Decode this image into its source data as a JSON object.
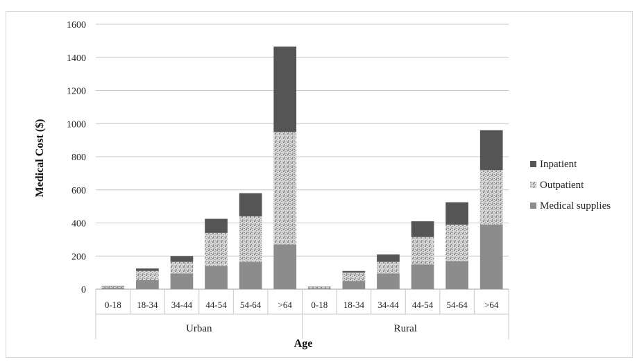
{
  "chart_data": {
    "type": "bar",
    "stacked": true,
    "xlabel": "Age",
    "ylabel": "Medical Cost ($)",
    "ylim": [
      0,
      1600
    ],
    "yticks": [
      0,
      200,
      400,
      600,
      800,
      1000,
      1200,
      1400,
      1600
    ],
    "grid": true,
    "legend_position": "right",
    "groups": [
      {
        "name": "Urban",
        "categories": [
          "0-18",
          "18-34",
          "34-44",
          "44-54",
          "54-64",
          ">64"
        ]
      },
      {
        "name": "Rural",
        "categories": [
          "0-18",
          "18-34",
          "34-44",
          "44-54",
          "54-64",
          ">64"
        ]
      }
    ],
    "series": [
      {
        "name": "Medical supplies",
        "color": "#8c8c8c",
        "pattern": "solid",
        "values": [
          8,
          55,
          95,
          140,
          165,
          270,
          6,
          50,
          95,
          150,
          170,
          390
        ]
      },
      {
        "name": "Outpatient",
        "color": "#bdbdbd",
        "pattern": "speckle",
        "values": [
          10,
          55,
          70,
          200,
          275,
          680,
          7,
          50,
          70,
          165,
          220,
          330
        ]
      },
      {
        "name": "Inpatient",
        "color": "#555555",
        "pattern": "solid",
        "values": [
          2,
          15,
          35,
          85,
          140,
          515,
          2,
          10,
          45,
          95,
          135,
          240
        ]
      }
    ],
    "legend_order": [
      "Inpatient",
      "Outpatient",
      "Medical supplies"
    ]
  }
}
